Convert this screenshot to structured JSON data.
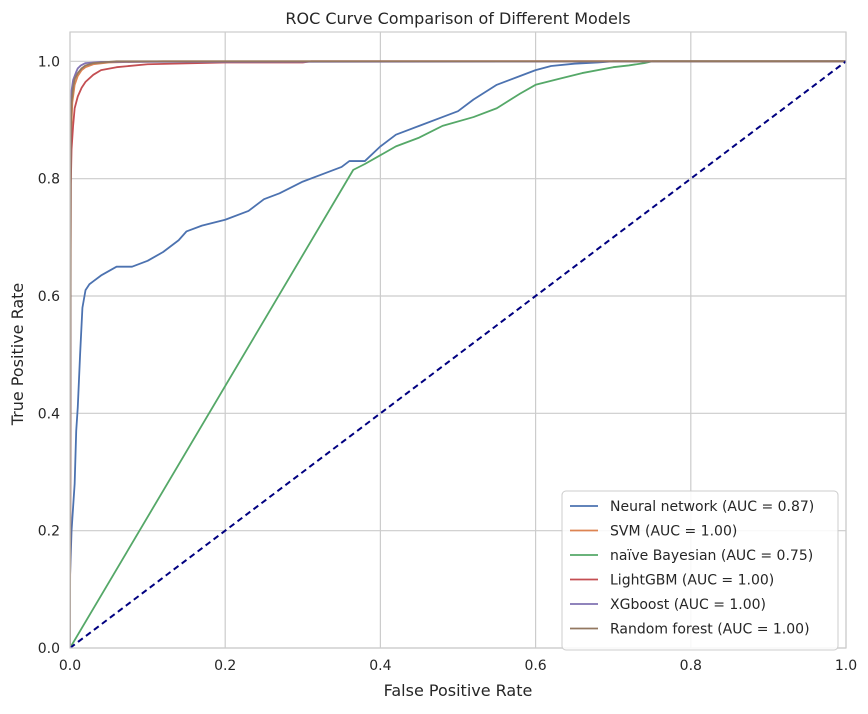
{
  "chart_data": {
    "type": "line",
    "title": "ROC Curve Comparison of Different Models",
    "xlabel": "False Positive Rate",
    "ylabel": "True Positive Rate",
    "xlim": [
      0.0,
      1.0
    ],
    "ylim": [
      0.0,
      1.05
    ],
    "x_ticks": [
      "0.0",
      "0.2",
      "0.4",
      "0.6",
      "0.8",
      "1.0"
    ],
    "y_ticks": [
      "0.0",
      "0.2",
      "0.4",
      "0.6",
      "0.8",
      "1.0"
    ],
    "grid": true,
    "legend_position": "lower-right",
    "series": [
      {
        "name": "Neural network (AUC = 0.87)",
        "color": "#4c72b0",
        "x": [
          0.0,
          0.002,
          0.004,
          0.006,
          0.008,
          0.01,
          0.013,
          0.016,
          0.02,
          0.025,
          0.03,
          0.04,
          0.06,
          0.08,
          0.1,
          0.12,
          0.14,
          0.15,
          0.17,
          0.2,
          0.23,
          0.25,
          0.27,
          0.3,
          0.33,
          0.35,
          0.36,
          0.38,
          0.4,
          0.42,
          0.45,
          0.48,
          0.5,
          0.52,
          0.55,
          0.58,
          0.6,
          0.62,
          0.65,
          0.68,
          0.7,
          0.72,
          0.75,
          1.0
        ],
        "y": [
          0.12,
          0.2,
          0.24,
          0.28,
          0.37,
          0.41,
          0.5,
          0.58,
          0.61,
          0.62,
          0.625,
          0.635,
          0.65,
          0.65,
          0.66,
          0.675,
          0.695,
          0.71,
          0.72,
          0.73,
          0.745,
          0.765,
          0.775,
          0.795,
          0.81,
          0.82,
          0.83,
          0.83,
          0.855,
          0.875,
          0.89,
          0.905,
          0.915,
          0.935,
          0.96,
          0.975,
          0.985,
          0.992,
          0.996,
          0.998,
          1.0,
          1.0,
          1.0,
          1.0
        ]
      },
      {
        "name": "SVM (AUC = 1.00)",
        "color": "#dd8452",
        "x": [
          0.0,
          0.001,
          0.003,
          0.006,
          0.01,
          0.015,
          0.02,
          0.03,
          0.05,
          0.08,
          0.12,
          1.0
        ],
        "y": [
          0.0,
          0.86,
          0.93,
          0.96,
          0.975,
          0.985,
          0.99,
          0.995,
          0.998,
          0.999,
          1.0,
          1.0
        ]
      },
      {
        "name": "naïve Bayesian (AUC = 0.75)",
        "color": "#55a868",
        "x": [
          0.0,
          0.365,
          0.38,
          0.4,
          0.42,
          0.45,
          0.48,
          0.52,
          0.55,
          0.58,
          0.6,
          0.63,
          0.66,
          0.7,
          0.72,
          0.74,
          0.75,
          1.0
        ],
        "y": [
          0.0,
          0.815,
          0.825,
          0.84,
          0.855,
          0.87,
          0.89,
          0.905,
          0.92,
          0.945,
          0.96,
          0.97,
          0.98,
          0.99,
          0.993,
          0.997,
          1.0,
          1.0
        ]
      },
      {
        "name": "LightGBM (AUC = 1.00)",
        "color": "#c44e52",
        "x": [
          0.0,
          0.001,
          0.002,
          0.004,
          0.006,
          0.01,
          0.015,
          0.02,
          0.03,
          0.04,
          0.06,
          0.1,
          0.2,
          0.3,
          0.31,
          1.0
        ],
        "y": [
          0.0,
          0.79,
          0.85,
          0.89,
          0.92,
          0.94,
          0.955,
          0.965,
          0.977,
          0.985,
          0.99,
          0.995,
          0.998,
          0.998,
          1.0,
          1.0
        ]
      },
      {
        "name": "XGboost (AUC = 1.00)",
        "color": "#8172b3",
        "x": [
          0.0,
          0.001,
          0.002,
          0.004,
          0.006,
          0.008,
          0.01,
          0.014,
          0.02,
          0.04,
          1.0
        ],
        "y": [
          0.0,
          0.9,
          0.95,
          0.968,
          0.975,
          0.982,
          0.988,
          0.993,
          0.997,
          0.999,
          1.0
        ]
      },
      {
        "name": "Random forest (AUC = 1.00)",
        "color": "#937860",
        "x": [
          0.0,
          0.001,
          0.002,
          0.004,
          0.006,
          0.01,
          0.015,
          0.02,
          0.03,
          0.05,
          0.06,
          1.0
        ],
        "y": [
          0.0,
          0.88,
          0.93,
          0.955,
          0.97,
          0.98,
          0.988,
          0.993,
          0.997,
          0.999,
          1.0,
          1.0
        ]
      }
    ],
    "reference_line": {
      "x": [
        0,
        1
      ],
      "y": [
        0,
        1
      ],
      "color": "#000080",
      "style": "dashed"
    }
  }
}
